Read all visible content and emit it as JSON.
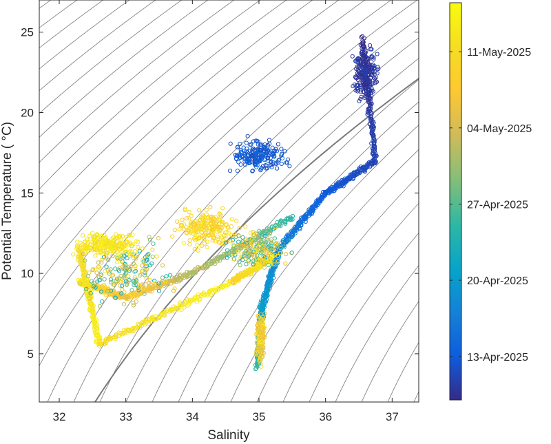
{
  "chart_data": {
    "type": "scatter",
    "xlabel": "Salinity",
    "ylabel": "Potential Temperature ( °C)",
    "xlim": [
      31.7,
      37.4
    ],
    "ylim": [
      2,
      27
    ],
    "xticks": [
      32,
      33,
      34,
      35,
      36,
      37
    ],
    "yticks": [
      5,
      10,
      15,
      20,
      25
    ],
    "grid": false,
    "marker": "open-circle",
    "background_contours": {
      "type": "isopycnals",
      "color": "#888888",
      "highlight_color": "#7a7a7a",
      "count": 34
    },
    "colorbar": {
      "location": "right",
      "colormap": "parula",
      "range_days": [
        -4,
        32.5
      ],
      "tick_days": [
        0,
        7,
        14,
        21,
        28
      ],
      "tick_labels": [
        "13-Apr-2025",
        "20-Apr-2025",
        "27-Apr-2025",
        "04-May-2025",
        "11-May-2025"
      ]
    },
    "series": [
      {
        "segments": [
          {
            "from": [
              36.55,
              24.6
            ],
            "to": [
              36.75,
              17.0
            ],
            "days": [
              -4,
              -2
            ]
          },
          {
            "from": [
              36.75,
              17.0
            ],
            "to": [
              36.0,
              15.0
            ],
            "days": [
              -2,
              0
            ]
          },
          {
            "from": [
              36.0,
              15.0
            ],
            "to": [
              35.3,
              11.5
            ],
            "days": [
              0,
              4
            ]
          },
          {
            "from": [
              35.3,
              11.5
            ],
            "to": [
              35.05,
              8.0
            ],
            "days": [
              4,
              7
            ]
          },
          {
            "from": [
              35.05,
              8.0
            ],
            "to": [
              34.98,
              4.2
            ],
            "days": [
              7,
              12
            ]
          }
        ]
      },
      {
        "segments": [
          {
            "from": [
              35.5,
              13.5
            ],
            "to": [
              34.0,
              10.0
            ],
            "days": [
              12,
              20
            ]
          },
          {
            "from": [
              34.0,
              10.0
            ],
            "to": [
              33.0,
              8.5
            ],
            "days": [
              18,
              26
            ]
          },
          {
            "from": [
              33.0,
              8.5
            ],
            "to": [
              32.3,
              9.5
            ],
            "days": [
              22,
              30
            ]
          },
          {
            "from": [
              32.3,
              11.5
            ],
            "to": [
              32.6,
              5.6
            ],
            "days": [
              28,
              31
            ]
          },
          {
            "from": [
              32.6,
              5.6
            ],
            "to": [
              34.6,
              9.5
            ],
            "days": [
              28,
              31
            ]
          },
          {
            "from": [
              34.6,
              9.5
            ],
            "to": [
              35.2,
              11.0
            ],
            "days": [
              26,
              31
            ]
          }
        ]
      }
    ],
    "clusters": [
      {
        "center": [
          36.6,
          22.5
        ],
        "spread": [
          0.15,
          1.5
        ],
        "days": [
          -4,
          -2
        ]
      },
      {
        "center": [
          35.0,
          17.3
        ],
        "spread": [
          0.35,
          0.8
        ],
        "days": [
          -2,
          2
        ]
      },
      {
        "center": [
          33.0,
          10.0
        ],
        "spread": [
          0.6,
          1.5
        ],
        "days": [
          8,
          31
        ]
      },
      {
        "center": [
          34.2,
          12.8
        ],
        "spread": [
          0.35,
          1.0
        ],
        "days": [
          24,
          31
        ]
      },
      {
        "center": [
          35.0,
          11.5
        ],
        "spread": [
          0.4,
          1.0
        ],
        "days": [
          8,
          31
        ]
      },
      {
        "center": [
          32.7,
          11.8
        ],
        "spread": [
          0.4,
          0.6
        ],
        "days": [
          28,
          31
        ]
      },
      {
        "center": [
          35.02,
          6.0
        ],
        "spread": [
          0.05,
          1.2
        ],
        "days": [
          20,
          31
        ]
      }
    ]
  }
}
